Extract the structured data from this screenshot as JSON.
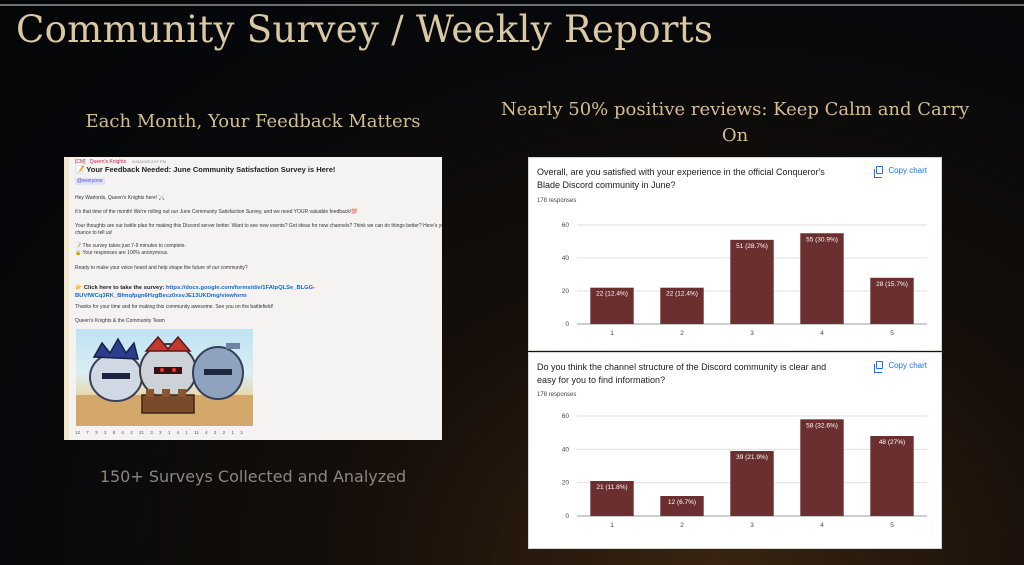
{
  "slide": {
    "title": "Community Survey / Weekly Reports",
    "left_heading": "Each Month, Your Feedback Matters",
    "right_heading": "Nearly 50% positive reviews: Keep Calm and Carry On",
    "caption": "150+ Surveys Collected and Analyzed"
  },
  "discord_post": {
    "tag": "[CM]",
    "author": "Queen's Knights",
    "timestamp": "6/26/2025 2:07 PM",
    "title": "📝 Your Feedback Needed: June Community Satisfaction Survey is Here!",
    "mention": "@everyone",
    "lines": [
      "Hey Warlords, Queen's Knights here! ⚔️",
      "It's that time of the month! We're rolling out our June Community Satisfaction Survey, and we need YOUR valuable feedback!💯",
      "Your thoughts are our battle plan for making this Discord server better. Want to see new events? Got ideas for new channels? Think we can do things better? Here's your",
      "chance to tell us!",
      "📝 The survey takes just 7-9 minutes to complete.",
      "🔒 Your responses are 100% anonymous.",
      "Ready to make your voice heard and help shape the future of our community?"
    ],
    "link_label": "👉 Click here to take the survey:",
    "link_url_1": "https://docs.google.com/forms/d/e/1FAIpQLSe_BLGG-",
    "link_url_2": "BUVfWCq3RK_Bfmqfpgn6HzgBecz0xsvJE13UKDmg/viewform",
    "thanks": "Thanks for your time and for making this community awesome. See you on the battlefield!",
    "signature": "Queen's Knights & the Community Team",
    "reactions": [
      "12",
      "7",
      "3",
      "3",
      "8",
      "4",
      "2",
      "21",
      "3",
      "3",
      "1",
      "4",
      "1",
      "11",
      "4",
      "2",
      "2",
      "1",
      "3"
    ]
  },
  "charts": [
    {
      "question": "Overall, are you satisfied with your experience in the official Conqueror's Blade Discord community in June?",
      "responses": "178 responses",
      "copy_label": "Copy chart",
      "chart_data": {
        "type": "bar",
        "categories": [
          "1",
          "2",
          "3",
          "4",
          "5"
        ],
        "values": [
          22,
          22,
          51,
          55,
          28
        ],
        "data_labels": [
          "22 (12.4%)",
          "22 (12.4%)",
          "51 (28.7%)",
          "55 (30.9%)",
          "28 (15.7%)"
        ],
        "yticks": [
          "0",
          "20",
          "40",
          "60"
        ],
        "ylim": [
          0,
          60
        ],
        "bar_color": "#6b2f2f"
      }
    },
    {
      "question": "Do you think the channel structure of the Discord community is clear and easy for you to find information?",
      "responses": "178 responses",
      "copy_label": "Copy chart",
      "chart_data": {
        "type": "bar",
        "categories": [
          "1",
          "2",
          "3",
          "4",
          "5"
        ],
        "values": [
          21,
          12,
          39,
          58,
          48
        ],
        "data_labels": [
          "21 (11.8%)",
          "12 (6.7%)",
          "39 (21.9%)",
          "58 (32.6%)",
          "48 (27%)"
        ],
        "yticks": [
          "0",
          "20",
          "40",
          "60"
        ],
        "ylim": [
          0,
          60
        ],
        "bar_color": "#6b2f2f"
      }
    }
  ]
}
